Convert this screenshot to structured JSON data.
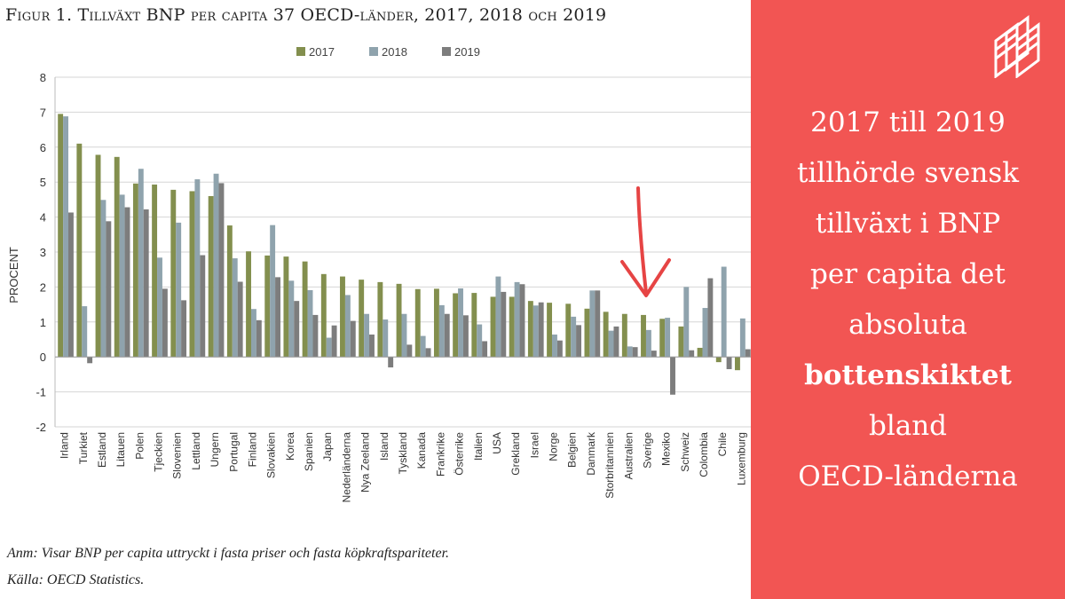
{
  "figure": {
    "title": "Figur 1. Tillväxt BNP per capita 37 OECD-länder, 2017, 2018 och 2019",
    "note": "Anm: Visar BNP per capita uttryckt i fasta priser och fasta köpkraftspariteter.",
    "source": "Källa: OECD Statistics."
  },
  "panel": {
    "lines": [
      "2017 till 2019",
      "tillhörde svensk",
      "tillväxt i BNP",
      "per capita det",
      "absoluta"
    ],
    "bold_line": "bottenskiktet",
    "lines_after": [
      "bland",
      "OECD-länderna"
    ],
    "background": "#f25553"
  },
  "chart_data": {
    "type": "bar",
    "title": "Tillväxt BNP per capita 37 OECD-länder, 2017, 2018 och 2019",
    "xlabel": "",
    "ylabel": "PROCENT",
    "ylim": [
      -2,
      8
    ],
    "yticks": [
      -2,
      -1,
      0,
      1,
      2,
      3,
      4,
      5,
      6,
      7,
      8
    ],
    "grid": true,
    "legend_position": "top",
    "categories": [
      "Irland",
      "Turkiet",
      "Estland",
      "Litauen",
      "Polen",
      "Tjeckien",
      "Slovenien",
      "Lettland",
      "Ungern",
      "Portugal",
      "Finland",
      "Slovakien",
      "Korea",
      "Spanien",
      "Japan",
      "Nederländerna",
      "Nya Zeeland",
      "Island",
      "Tyskland",
      "Kanada",
      "Frankrike",
      "Österrike",
      "Italien",
      "USA",
      "Grekland",
      "Israel",
      "Norge",
      "Belgien",
      "Danmark",
      "Storbritannien",
      "Australien",
      "Sverige",
      "Mexiko",
      "Schweiz",
      "Colombia",
      "Chile",
      "Luxemburg"
    ],
    "series": [
      {
        "name": "2017",
        "color": "#838f4e",
        "values": [
          6.95,
          6.1,
          5.78,
          5.72,
          4.96,
          4.93,
          4.78,
          4.74,
          4.6,
          3.76,
          3.02,
          2.9,
          2.87,
          2.73,
          2.37,
          2.3,
          2.21,
          2.14,
          2.09,
          1.94,
          1.95,
          1.82,
          1.83,
          1.72,
          1.72,
          1.6,
          1.55,
          1.52,
          1.38,
          1.29,
          1.23,
          1.2,
          1.09,
          0.87,
          0.26,
          -0.15,
          -0.38
        ]
      },
      {
        "name": "2018",
        "color": "#8fa3ad",
        "values": [
          6.88,
          1.45,
          4.49,
          4.64,
          5.38,
          2.84,
          3.84,
          5.08,
          5.24,
          2.82,
          1.37,
          3.77,
          2.18,
          1.91,
          0.55,
          1.77,
          1.23,
          1.07,
          1.23,
          0.6,
          1.48,
          1.96,
          0.93,
          2.3,
          2.14,
          1.47,
          0.64,
          1.15,
          1.9,
          0.75,
          0.3,
          0.77,
          1.12,
          2.0,
          1.4,
          2.58,
          1.1
        ]
      },
      {
        "name": "2019",
        "color": "#7d7d7d",
        "values": [
          4.13,
          -0.18,
          3.88,
          4.28,
          4.22,
          1.95,
          1.62,
          2.91,
          4.97,
          2.15,
          1.05,
          2.28,
          1.6,
          1.2,
          0.9,
          1.03,
          0.64,
          -0.3,
          0.35,
          0.25,
          1.23,
          1.19,
          0.45,
          1.86,
          2.08,
          1.56,
          0.47,
          0.91,
          1.9,
          0.87,
          0.28,
          0.18,
          -1.08,
          0.19,
          2.25,
          -0.35,
          0.22
        ]
      }
    ],
    "annotation": "red hand-drawn arrow pointing down at Sverige"
  }
}
